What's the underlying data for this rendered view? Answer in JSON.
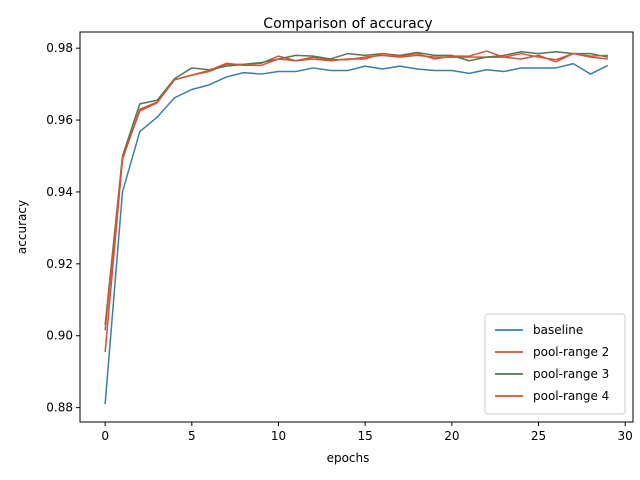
{
  "chart_data": {
    "type": "line",
    "title": "Comparison of accuracy",
    "xlabel": "epochs",
    "ylabel": "accuracy",
    "xlim": [
      -1.45,
      30.45
    ],
    "ylim": [
      0.876,
      0.9845
    ],
    "xticks": [
      0,
      5,
      10,
      15,
      20,
      25,
      30
    ],
    "yticks": [
      0.88,
      0.9,
      0.92,
      0.94,
      0.96,
      0.98
    ],
    "grid": false,
    "legend_position": "lower-right",
    "x": [
      0,
      1,
      2,
      3,
      4,
      5,
      6,
      7,
      8,
      9,
      10,
      11,
      12,
      13,
      14,
      15,
      16,
      17,
      18,
      19,
      20,
      21,
      22,
      23,
      24,
      25,
      26,
      27,
      28,
      29
    ],
    "series": [
      {
        "name": "baseline",
        "color": "#3d7ea6",
        "values": [
          0.881,
          0.94,
          0.9568,
          0.9608,
          0.9662,
          0.9685,
          0.9698,
          0.972,
          0.9732,
          0.9728,
          0.9735,
          0.9735,
          0.9745,
          0.9738,
          0.9738,
          0.975,
          0.9742,
          0.975,
          0.9742,
          0.9738,
          0.9738,
          0.973,
          0.974,
          0.9735,
          0.9745,
          0.9745,
          0.9745,
          0.9757,
          0.9728,
          0.9752
        ]
      },
      {
        "name": "pool-range 2",
        "color": "#c8553d",
        "values": [
          0.8955,
          0.949,
          0.963,
          0.965,
          0.9712,
          0.9725,
          0.9735,
          0.9755,
          0.9755,
          0.9758,
          0.9778,
          0.9765,
          0.9775,
          0.9768,
          0.9768,
          0.9775,
          0.978,
          0.9775,
          0.978,
          0.9775,
          0.9775,
          0.9775,
          0.9775,
          0.9775,
          0.977,
          0.978,
          0.9762,
          0.9785,
          0.9775,
          0.977
        ]
      },
      {
        "name": "pool-range 3",
        "color": "#4f7a4f",
        "values": [
          0.903,
          0.95,
          0.9645,
          0.9655,
          0.9715,
          0.9745,
          0.974,
          0.975,
          0.9755,
          0.976,
          0.977,
          0.978,
          0.9778,
          0.977,
          0.9785,
          0.978,
          0.9785,
          0.978,
          0.9788,
          0.978,
          0.978,
          0.9765,
          0.9775,
          0.978,
          0.979,
          0.9785,
          0.979,
          0.9785,
          0.9785,
          0.9775
        ]
      },
      {
        "name": "pool-range 4",
        "color": "#d2553a",
        "values": [
          0.9015,
          0.9495,
          0.9625,
          0.9648,
          0.9712,
          0.9725,
          0.9738,
          0.9758,
          0.9752,
          0.9752,
          0.977,
          0.9765,
          0.977,
          0.9765,
          0.977,
          0.977,
          0.9785,
          0.9778,
          0.9785,
          0.977,
          0.9778,
          0.9778,
          0.9792,
          0.9775,
          0.9785,
          0.9775,
          0.9768,
          0.9785,
          0.9778,
          0.978
        ]
      }
    ]
  }
}
